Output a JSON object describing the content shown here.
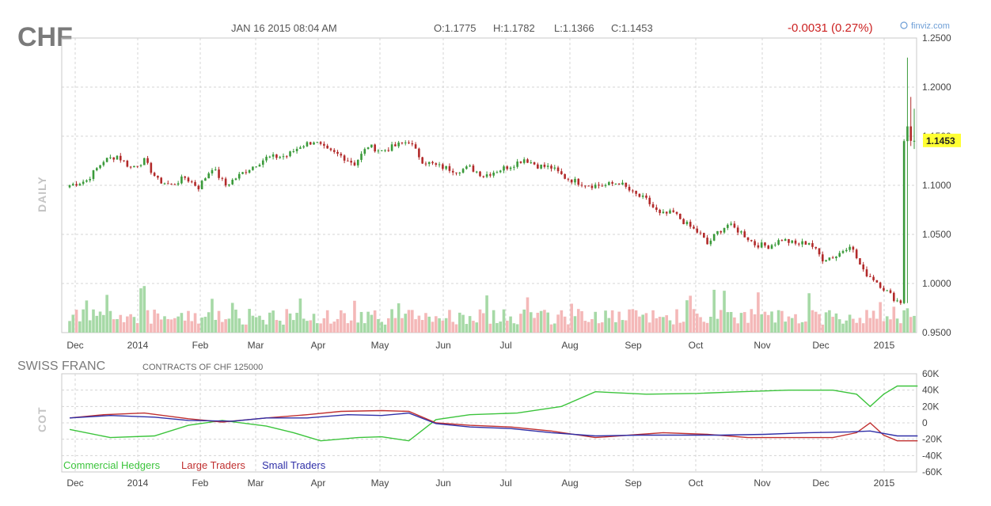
{
  "header": {
    "ticker": "CHF",
    "datetime": "JAN 16 2015 08:04 AM",
    "open": "O:1.1775",
    "high": "H:1.1782",
    "low": "L:1.1366",
    "close": "C:1.1453",
    "change": "-0.0031 (0.27%)",
    "brand": "finviz.com",
    "last_price_label": "1.1453"
  },
  "colors": {
    "up": "#3a9a3a",
    "down": "#b22a2a",
    "volume_up": "#a6d9a6",
    "volume_down": "#f4b8b8",
    "price_highlight": "#ffff33",
    "commercial": "#3cc43c",
    "large": "#c03030",
    "small": "#3030a8"
  },
  "chart_data": [
    {
      "type": "candlestick",
      "ylabel": "DAILY",
      "ylim": [
        0.95,
        1.25
      ],
      "yticks": [
        "1.2500",
        "1.2000",
        "1.1500",
        "1.1000",
        "1.0500",
        "1.0000",
        "0.9500"
      ],
      "x_tick_labels": [
        "Dec",
        "2014",
        "Feb",
        "Mar",
        "Apr",
        "May",
        "Jun",
        "Jul",
        "Aug",
        "Sep",
        "Oct",
        "Nov",
        "Dec",
        "2015"
      ],
      "last_close": 1.1453,
      "close_anchors": [
        [
          0,
          1.1
        ],
        [
          5,
          1.105
        ],
        [
          10,
          1.125
        ],
        [
          14,
          1.13
        ],
        [
          18,
          1.118
        ],
        [
          22,
          1.125
        ],
        [
          26,
          1.105
        ],
        [
          30,
          1.1
        ],
        [
          34,
          1.108
        ],
        [
          38,
          1.098
        ],
        [
          42,
          1.118
        ],
        [
          46,
          1.1
        ],
        [
          52,
          1.115
        ],
        [
          58,
          1.128
        ],
        [
          64,
          1.13
        ],
        [
          68,
          1.14
        ],
        [
          72,
          1.145
        ],
        [
          76,
          1.135
        ],
        [
          80,
          1.13
        ],
        [
          84,
          1.122
        ],
        [
          88,
          1.14
        ],
        [
          92,
          1.135
        ],
        [
          96,
          1.14
        ],
        [
          100,
          1.145
        ],
        [
          104,
          1.125
        ],
        [
          108,
          1.12
        ],
        [
          114,
          1.115
        ],
        [
          118,
          1.118
        ],
        [
          122,
          1.11
        ],
        [
          126,
          1.115
        ],
        [
          130,
          1.12
        ],
        [
          134,
          1.127
        ],
        [
          138,
          1.12
        ],
        [
          142,
          1.118
        ],
        [
          146,
          1.108
        ],
        [
          150,
          1.103
        ],
        [
          154,
          1.1
        ],
        [
          158,
          1.1
        ],
        [
          162,
          1.103
        ],
        [
          166,
          1.092
        ],
        [
          170,
          1.085
        ],
        [
          174,
          1.07
        ],
        [
          178,
          1.072
        ],
        [
          182,
          1.06
        ],
        [
          186,
          1.05
        ],
        [
          188,
          1.04
        ],
        [
          191,
          1.052
        ],
        [
          194,
          1.06
        ],
        [
          198,
          1.052
        ],
        [
          202,
          1.04
        ],
        [
          206,
          1.038
        ],
        [
          210,
          1.045
        ],
        [
          214,
          1.04
        ],
        [
          218,
          1.042
        ],
        [
          222,
          1.025
        ],
        [
          226,
          1.028
        ],
        [
          230,
          1.04
        ],
        [
          234,
          1.012
        ],
        [
          237,
          1.005
        ],
        [
          240,
          0.995
        ],
        [
          243,
          0.985
        ],
        [
          245,
          0.98
        ],
        [
          246,
          1.145
        ],
        [
          247,
          1.16
        ],
        [
          248,
          1.1453
        ]
      ],
      "volume": "relative daily volume bars, colored by candle direction"
    },
    {
      "type": "line",
      "title": "SWISS FRANC",
      "subtitle": "CONTRACTS OF CHF 125000",
      "ylabel": "COT",
      "ylim": [
        -60000,
        60000
      ],
      "yticks": [
        "60K",
        "40K",
        "20K",
        "0",
        "-20K",
        "-40K",
        "-60K"
      ],
      "x_tick_labels": [
        "Dec",
        "2014",
        "Feb",
        "Mar",
        "Apr",
        "May",
        "Jun",
        "Jul",
        "Aug",
        "Sep",
        "Oct",
        "Nov",
        "Dec",
        "2015"
      ],
      "series": [
        {
          "name": "Commercial Hedgers",
          "points": [
            [
              0,
              -8000
            ],
            [
              12,
              -18000
            ],
            [
              25,
              -16000
            ],
            [
              35,
              -3000
            ],
            [
              45,
              3000
            ],
            [
              58,
              -4000
            ],
            [
              66,
              -12000
            ],
            [
              74,
              -22000
            ],
            [
              85,
              -18000
            ],
            [
              92,
              -17000
            ],
            [
              100,
              -22000
            ],
            [
              108,
              4000
            ],
            [
              118,
              10000
            ],
            [
              132,
              12000
            ],
            [
              145,
              20000
            ],
            [
              155,
              38000
            ],
            [
              170,
              35000
            ],
            [
              185,
              36000
            ],
            [
              198,
              38000
            ],
            [
              212,
              40000
            ],
            [
              225,
              40000
            ],
            [
              232,
              35000
            ],
            [
              236,
              20000
            ],
            [
              240,
              35000
            ],
            [
              244,
              45000
            ],
            [
              250,
              45000
            ]
          ]
        },
        {
          "name": "Large Traders",
          "points": [
            [
              0,
              6000
            ],
            [
              10,
              10000
            ],
            [
              22,
              12000
            ],
            [
              35,
              5000
            ],
            [
              45,
              1000
            ],
            [
              58,
              6000
            ],
            [
              70,
              10000
            ],
            [
              80,
              14000
            ],
            [
              92,
              15000
            ],
            [
              100,
              14000
            ],
            [
              108,
              0
            ],
            [
              118,
              -3000
            ],
            [
              130,
              -5000
            ],
            [
              142,
              -10000
            ],
            [
              155,
              -18000
            ],
            [
              165,
              -15000
            ],
            [
              175,
              -12000
            ],
            [
              188,
              -14000
            ],
            [
              200,
              -18000
            ],
            [
              212,
              -18000
            ],
            [
              225,
              -18000
            ],
            [
              232,
              -12000
            ],
            [
              236,
              0
            ],
            [
              240,
              -15000
            ],
            [
              244,
              -22000
            ],
            [
              250,
              -22000
            ]
          ]
        },
        {
          "name": "Small Traders",
          "points": [
            [
              0,
              6000
            ],
            [
              12,
              9000
            ],
            [
              25,
              7000
            ],
            [
              35,
              3000
            ],
            [
              48,
              2000
            ],
            [
              58,
              6000
            ],
            [
              70,
              6000
            ],
            [
              82,
              10000
            ],
            [
              92,
              9000
            ],
            [
              100,
              12000
            ],
            [
              108,
              -1000
            ],
            [
              118,
              -5000
            ],
            [
              130,
              -7000
            ],
            [
              142,
              -12000
            ],
            [
              155,
              -16000
            ],
            [
              168,
              -15000
            ],
            [
              180,
              -15000
            ],
            [
              192,
              -15000
            ],
            [
              205,
              -14000
            ],
            [
              218,
              -12000
            ],
            [
              230,
              -11000
            ],
            [
              236,
              -10000
            ],
            [
              244,
              -16000
            ],
            [
              250,
              -16000
            ]
          ]
        }
      ],
      "legend_position": "bottom-left"
    }
  ]
}
